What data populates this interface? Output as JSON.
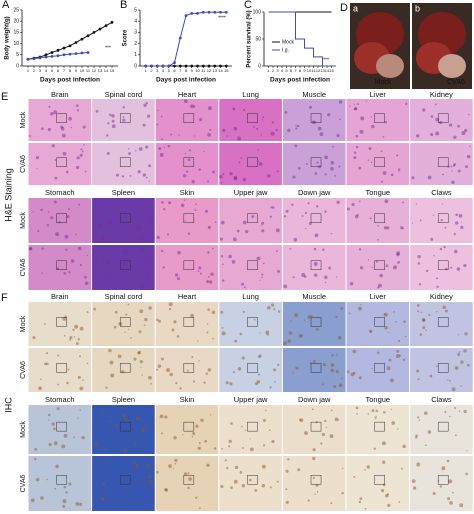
{
  "chart_data": [
    {
      "type": "line",
      "panel": "A",
      "ylabel": "Body weight(g)",
      "xlabel": "Days post infection",
      "annotation": "***",
      "x": [
        1,
        2,
        3,
        4,
        5,
        6,
        7,
        8,
        9,
        10,
        11,
        12,
        13,
        14,
        15
      ],
      "xlim": [
        0,
        16
      ],
      "xticks": [
        1,
        2,
        3,
        4,
        5,
        6,
        7,
        8,
        9,
        10,
        11,
        12,
        13,
        14,
        15
      ],
      "ylim": [
        0,
        25
      ],
      "yticks": [
        0,
        5,
        10,
        15,
        20,
        25
      ],
      "series": [
        {
          "color": "#111111",
          "values": [
            3,
            3.5,
            4,
            5,
            6,
            7,
            8,
            9,
            10.5,
            12,
            13.5,
            15,
            16.5,
            18,
            19.5
          ]
        },
        {
          "color": "#3a4fb0",
          "values": [
            3,
            3.3,
            3.6,
            4,
            4.3,
            4.6,
            5,
            5.3,
            5.5,
            5.8,
            6,
            null,
            null,
            null,
            null
          ]
        }
      ]
    },
    {
      "type": "line",
      "panel": "B",
      "ylabel": "Score",
      "xlabel": "Days post infection",
      "annotation": "****",
      "x": [
        1,
        2,
        3,
        4,
        5,
        6,
        7,
        8,
        9,
        10,
        11,
        12,
        13,
        14,
        15
      ],
      "xlim": [
        0,
        16
      ],
      "xticks": [
        1,
        2,
        3,
        4,
        5,
        6,
        7,
        8,
        9,
        10,
        11,
        12,
        13,
        14,
        15
      ],
      "ylim": [
        0,
        5
      ],
      "yticks": [
        0,
        1,
        2,
        3,
        4,
        5
      ],
      "series": [
        {
          "color": "#111111",
          "values": [
            0,
            0,
            0,
            0,
            0,
            0,
            0,
            0,
            0,
            0,
            0,
            0,
            0,
            0,
            0
          ]
        },
        {
          "color": "#3a4fb0",
          "values": [
            0,
            0,
            0,
            0,
            0,
            0.3,
            2.5,
            4.5,
            4.7,
            4.7,
            4.8,
            4.8,
            4.8,
            4.8,
            4.8
          ]
        }
      ]
    },
    {
      "type": "step",
      "panel": "C",
      "ylabel": "Percent survival (%)",
      "xlabel": "Days post infection",
      "annotation": "***",
      "x": [
        1,
        2,
        3,
        4,
        5,
        6,
        7,
        8,
        9,
        10,
        11,
        12,
        13,
        14,
        15
      ],
      "xlim": [
        0,
        16
      ],
      "xticks": [
        1,
        2,
        3,
        4,
        5,
        6,
        7,
        8,
        9,
        10,
        11,
        12,
        13,
        14,
        15
      ],
      "ylim": [
        0,
        100
      ],
      "yticks": [
        0,
        50,
        100
      ],
      "series": [
        {
          "name": "Mock",
          "color": "#111111",
          "values": [
            100,
            100,
            100,
            100,
            100,
            100,
            100,
            100,
            100,
            100,
            100,
            100,
            100,
            100,
            100
          ]
        },
        {
          "name": "I.g.",
          "color": "#3a4fb0",
          "values": [
            100,
            100,
            100,
            100,
            100,
            100,
            50,
            50,
            33,
            33,
            17,
            17,
            0,
            0,
            0
          ]
        }
      ]
    }
  ],
  "panel_d": {
    "letter": "D",
    "left": "a",
    "right": "b",
    "left_label": "Mock",
    "right_label": "CVA6"
  },
  "panel_e": {
    "letter": "E",
    "group": "H&E Staining",
    "blocks": [
      {
        "columns": [
          "Brain",
          "Spinal cord",
          "Heart",
          "Lung",
          "Muscle",
          "Liver",
          "Kidney"
        ],
        "rows": [
          "Mock",
          "CVA6"
        ]
      },
      {
        "columns": [
          "Stomach",
          "Spleen",
          "Skin",
          "Upper jaw",
          "Down jaw",
          "Tongue",
          "Claws"
        ],
        "rows": [
          "Mock",
          "CVA6"
        ]
      }
    ]
  },
  "panel_f": {
    "letter": "F",
    "group": "IHC",
    "blocks": [
      {
        "columns": [
          "Brain",
          "Spinal cord",
          "Heart",
          "Lung",
          "Muscle",
          "Liver",
          "Kidney"
        ],
        "rows": [
          "Mock",
          "CVA6"
        ]
      },
      {
        "columns": [
          "Stomach",
          "Spleen",
          "Skin",
          "Upper jaw",
          "Down jaw",
          "Tongue",
          "Claws"
        ],
        "rows": [
          "Mock",
          "CVA6"
        ]
      }
    ]
  }
}
